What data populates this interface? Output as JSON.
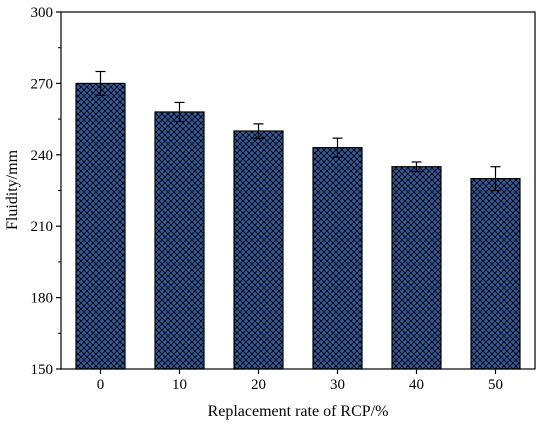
{
  "chart_data": {
    "type": "bar",
    "categories": [
      "0",
      "10",
      "20",
      "30",
      "40",
      "50"
    ],
    "values": [
      270,
      258,
      250,
      243,
      235,
      230
    ],
    "errors": [
      5,
      4,
      3,
      4,
      2,
      5
    ],
    "xlabel": "Replacement rate of RCP/%",
    "ylabel": "Fluidity/mm",
    "ylim": [
      150,
      300
    ],
    "yticks": [
      150,
      180,
      210,
      240,
      270,
      300
    ],
    "grid": false,
    "legend": "none",
    "bar_fill_color": "#2f5a9b",
    "bar_pattern": "crosshatch",
    "pattern_line_color": "#000000"
  }
}
